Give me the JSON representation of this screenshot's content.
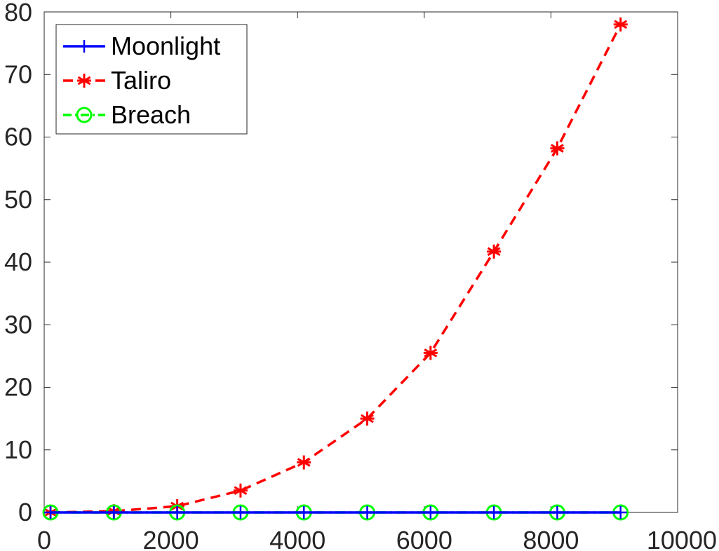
{
  "chart_data": {
    "type": "line",
    "title": "",
    "xlabel": "",
    "ylabel": "",
    "xlim": [
      0,
      10000
    ],
    "ylim": [
      0,
      80
    ],
    "xticks": [
      0,
      2000,
      4000,
      6000,
      8000,
      10000
    ],
    "yticks": [
      0,
      10,
      20,
      30,
      40,
      50,
      60,
      70,
      80
    ],
    "xtick_labels": [
      "0",
      "2000",
      "4000",
      "6000",
      "8000",
      "10000"
    ],
    "ytick_labels": [
      "0",
      "10",
      "20",
      "30",
      "40",
      "50",
      "60",
      "70",
      "80"
    ],
    "grid": false,
    "legend_position": "top-left",
    "x": [
      100,
      1100,
      2100,
      3100,
      4100,
      5100,
      6100,
      7100,
      8100,
      9100
    ],
    "series": [
      {
        "name": "Moonlight",
        "color": "#0000ff",
        "line_style": "solid",
        "marker": "plus",
        "values": [
          0,
          0,
          0,
          0,
          0,
          0,
          0,
          0,
          0,
          0
        ]
      },
      {
        "name": "Taliro",
        "color": "#ff0000",
        "line_style": "dashed",
        "marker": "asterisk",
        "values": [
          0,
          0.2,
          1,
          3.5,
          8,
          15,
          25.5,
          41.7,
          58.2,
          78
        ]
      },
      {
        "name": "Breach",
        "color": "#00ff00",
        "line_style": "dashdot",
        "marker": "circle",
        "values": [
          0,
          0,
          0,
          0,
          0,
          0,
          0,
          0,
          0,
          0
        ]
      }
    ]
  }
}
